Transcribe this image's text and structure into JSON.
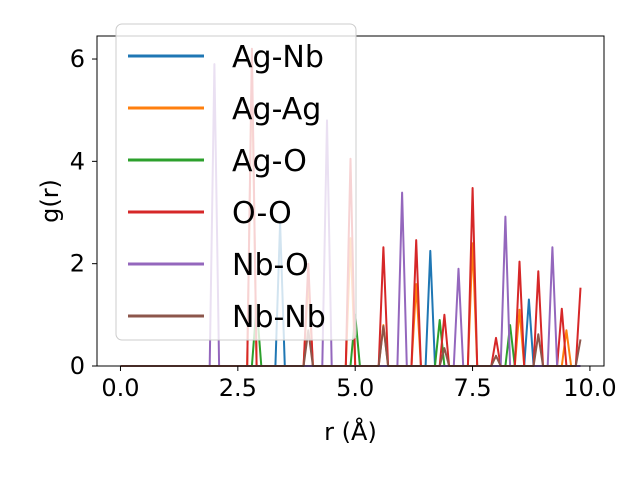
{
  "chart_data": {
    "type": "line",
    "title": "",
    "xlabel": "r (Å)",
    "ylabel": "g(r)",
    "xlim": [
      -0.5,
      10.3
    ],
    "ylim": [
      0,
      6.45
    ],
    "xticks": [
      0.0,
      2.5,
      5.0,
      7.5,
      10.0
    ],
    "xtick_labels": [
      "0.0",
      "2.5",
      "5.0",
      "7.5",
      "10.0"
    ],
    "yticks": [
      0,
      2,
      4,
      6
    ],
    "ytick_labels": [
      "0",
      "2",
      "4",
      "6"
    ],
    "grid": false,
    "legend_position": "upper-left",
    "series": [
      {
        "name": "Ag-Nb",
        "color": "#1f77b4",
        "peaks": [
          [
            3.4,
            2.8
          ],
          [
            6.6,
            2.25
          ],
          [
            8.7,
            1.3
          ]
        ]
      },
      {
        "name": "Ag-Ag",
        "color": "#ff7f0e",
        "peaks": [
          [
            2.8,
            5.9
          ],
          [
            4.0,
            1.7
          ],
          [
            4.9,
            2.5
          ],
          [
            5.6,
            0.8
          ],
          [
            6.3,
            1.6
          ],
          [
            7.5,
            2.4
          ],
          [
            8.5,
            1.1
          ],
          [
            9.5,
            0.7
          ]
        ]
      },
      {
        "name": "Ag-O",
        "color": "#2ca02c",
        "peaks": [
          [
            2.9,
            1.2
          ],
          [
            5.0,
            1.0
          ],
          [
            6.8,
            0.9
          ],
          [
            8.3,
            0.8
          ]
        ]
      },
      {
        "name": "O-O",
        "color": "#d62728",
        "peaks": [
          [
            2.8,
            6.2
          ],
          [
            4.0,
            2.0
          ],
          [
            4.9,
            4.05
          ],
          [
            5.6,
            2.32
          ],
          [
            6.3,
            2.46
          ],
          [
            6.9,
            1.0
          ],
          [
            7.5,
            3.48
          ],
          [
            8.0,
            0.55
          ],
          [
            8.5,
            2.04
          ],
          [
            8.9,
            1.85
          ],
          [
            9.4,
            1.12
          ],
          [
            9.8,
            1.53
          ]
        ]
      },
      {
        "name": "Nb-O",
        "color": "#9467bd",
        "peaks": [
          [
            2.0,
            5.9
          ],
          [
            4.4,
            4.8
          ],
          [
            6.0,
            3.39
          ],
          [
            7.2,
            1.9
          ],
          [
            8.2,
            2.92
          ],
          [
            9.2,
            2.32
          ]
        ]
      },
      {
        "name": "Nb-Nb",
        "color": "#8c564b",
        "peaks": [
          [
            4.0,
            0.7
          ],
          [
            5.6,
            0.78
          ],
          [
            6.9,
            0.35
          ],
          [
            8.0,
            0.2
          ],
          [
            8.9,
            0.62
          ],
          [
            9.8,
            0.52
          ]
        ]
      }
    ]
  }
}
